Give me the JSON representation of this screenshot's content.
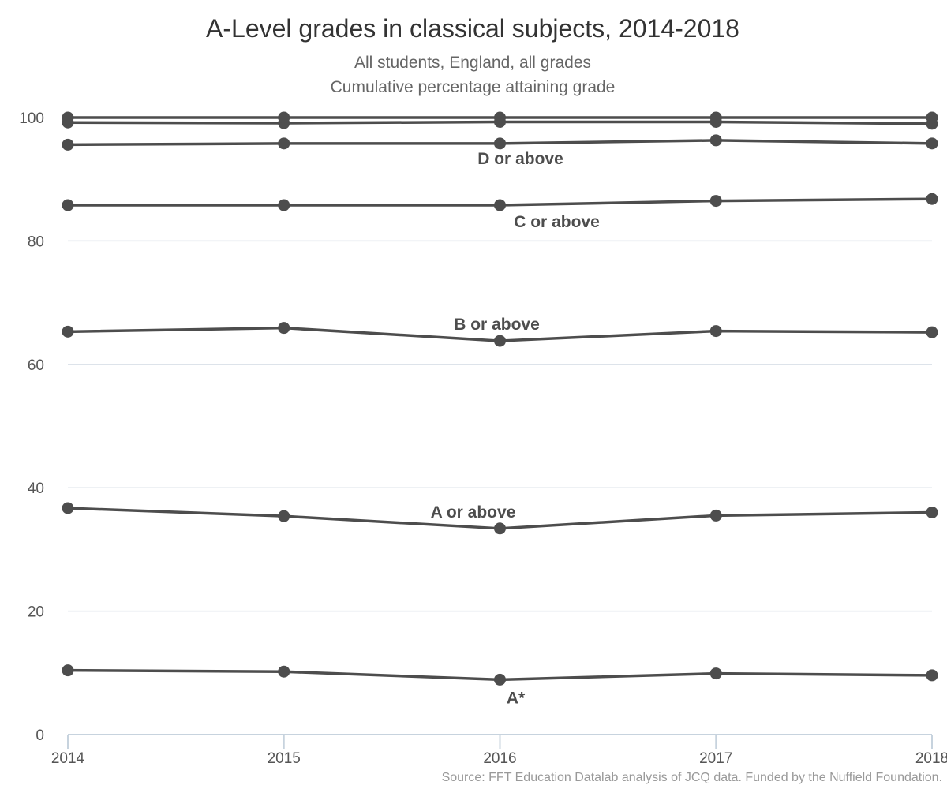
{
  "chart_data": {
    "type": "line",
    "title": "A-Level grades in classical subjects, 2014-2018",
    "subtitle_lines": [
      "All students, England, all grades",
      "Cumulative percentage attaining grade"
    ],
    "x": [
      "2014",
      "2015",
      "2016",
      "2017",
      "2018"
    ],
    "ylim": [
      0,
      100
    ],
    "yticks": [
      0,
      20,
      40,
      60,
      80,
      100
    ],
    "grid": true,
    "source": "Source: FFT Education Datalab analysis of JCQ data. Funded by the Nuffield Foundation.",
    "line_color": "#4d4d4d",
    "series": [
      {
        "name": "A*",
        "values": [
          10.4,
          10.2,
          8.9,
          9.9,
          9.6
        ]
      },
      {
        "name": "A or above",
        "values": [
          36.7,
          35.4,
          33.4,
          35.5,
          36.0
        ]
      },
      {
        "name": "B or above",
        "values": [
          65.3,
          65.9,
          63.8,
          65.4,
          65.2
        ]
      },
      {
        "name": "C or above",
        "values": [
          85.8,
          85.8,
          85.8,
          86.5,
          86.8
        ]
      },
      {
        "name": "D or above",
        "values": [
          95.6,
          95.8,
          95.8,
          96.3,
          95.8
        ]
      },
      {
        "name": "",
        "values": [
          99.2,
          99.1,
          99.3,
          99.3,
          99.0
        ]
      },
      {
        "name": "",
        "values": [
          100,
          100,
          100,
          100,
          100
        ]
      }
    ]
  }
}
